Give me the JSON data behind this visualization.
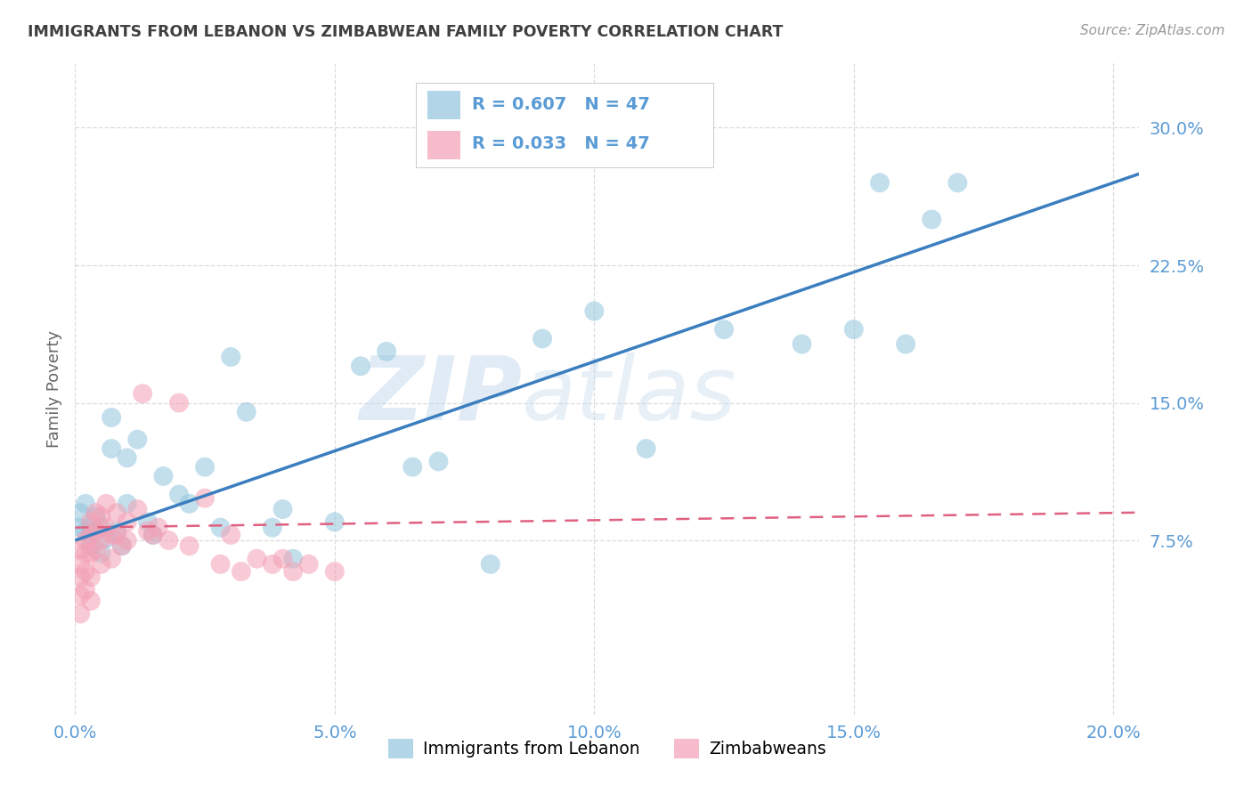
{
  "title": "IMMIGRANTS FROM LEBANON VS ZIMBABWEAN FAMILY POVERTY CORRELATION CHART",
  "source": "Source: ZipAtlas.com",
  "ylabel": "Family Poverty",
  "legend_label1": "Immigrants from Lebanon",
  "legend_label2": "Zimbabweans",
  "R1": 0.607,
  "N1": 47,
  "R2": 0.033,
  "N2": 47,
  "xlim": [
    0.0,
    0.205
  ],
  "ylim": [
    -0.02,
    0.335
  ],
  "yticks": [
    0.075,
    0.15,
    0.225,
    0.3
  ],
  "ytick_labels": [
    "7.5%",
    "15.0%",
    "22.5%",
    "30.0%"
  ],
  "xticks": [
    0.0,
    0.05,
    0.1,
    0.15,
    0.2
  ],
  "xtick_labels": [
    "0.0%",
    "5.0%",
    "10.0%",
    "15.0%",
    "20.0%"
  ],
  "color_blue": "#92c5de",
  "color_pink": "#f4a0b5",
  "trendline_blue": "#3a7ebf",
  "trendline_pink": "#e06080",
  "background": "#ffffff",
  "watermark": "ZIPatlas",
  "blue_x": [
    0.001,
    0.001,
    0.002,
    0.002,
    0.003,
    0.003,
    0.003,
    0.004,
    0.005,
    0.005,
    0.006,
    0.007,
    0.007,
    0.008,
    0.009,
    0.01,
    0.01,
    0.012,
    0.014,
    0.015,
    0.017,
    0.02,
    0.022,
    0.025,
    0.028,
    0.03,
    0.033,
    0.038,
    0.04,
    0.042,
    0.05,
    0.055,
    0.06,
    0.065,
    0.07,
    0.08,
    0.09,
    0.095,
    0.1,
    0.11,
    0.125,
    0.14,
    0.155,
    0.165,
    0.15,
    0.16,
    0.17
  ],
  "blue_y": [
    0.09,
    0.082,
    0.095,
    0.08,
    0.082,
    0.078,
    0.072,
    0.088,
    0.082,
    0.068,
    0.076,
    0.142,
    0.125,
    0.08,
    0.072,
    0.12,
    0.095,
    0.13,
    0.085,
    0.078,
    0.11,
    0.1,
    0.095,
    0.115,
    0.082,
    0.175,
    0.145,
    0.082,
    0.092,
    0.065,
    0.085,
    0.17,
    0.178,
    0.115,
    0.118,
    0.062,
    0.185,
    0.3,
    0.2,
    0.125,
    0.19,
    0.182,
    0.27,
    0.25,
    0.19,
    0.182,
    0.27
  ],
  "pink_x": [
    0.001,
    0.001,
    0.001,
    0.001,
    0.001,
    0.002,
    0.002,
    0.002,
    0.002,
    0.003,
    0.003,
    0.003,
    0.003,
    0.003,
    0.004,
    0.004,
    0.004,
    0.005,
    0.005,
    0.005,
    0.006,
    0.006,
    0.007,
    0.007,
    0.008,
    0.008,
    0.009,
    0.01,
    0.01,
    0.012,
    0.013,
    0.014,
    0.015,
    0.016,
    0.018,
    0.02,
    0.022,
    0.025,
    0.028,
    0.03,
    0.032,
    0.035,
    0.038,
    0.04,
    0.042,
    0.045,
    0.05
  ],
  "pink_y": [
    0.07,
    0.062,
    0.055,
    0.045,
    0.035,
    0.075,
    0.068,
    0.058,
    0.048,
    0.085,
    0.078,
    0.068,
    0.055,
    0.042,
    0.09,
    0.08,
    0.07,
    0.088,
    0.075,
    0.062,
    0.095,
    0.082,
    0.078,
    0.065,
    0.09,
    0.078,
    0.072,
    0.085,
    0.075,
    0.092,
    0.155,
    0.08,
    0.078,
    0.082,
    0.075,
    0.15,
    0.072,
    0.098,
    0.062,
    0.078,
    0.058,
    0.065,
    0.062,
    0.065,
    0.058,
    0.062,
    0.058
  ],
  "grid_color": "#d8d8d8",
  "title_color": "#404040",
  "tick_label_color": "#5b9bd5"
}
